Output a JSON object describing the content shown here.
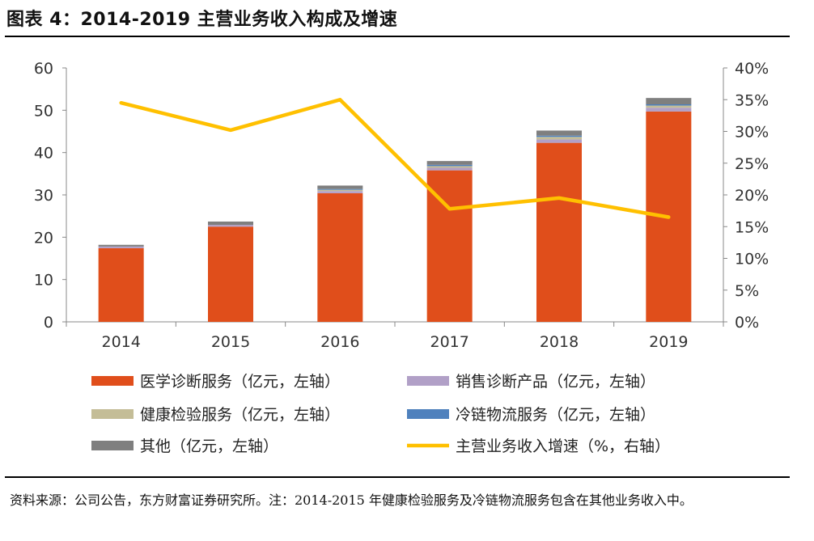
{
  "title": "图表 4：2014-2019 主营业务收入构成及增速",
  "source": "资料来源：公司公告，东方财富证券研究所。注：2014-2015 年健康检验服务及冷链物流服务包含在其他业务收入中。",
  "chart_data": {
    "type": "bar",
    "stacked": true,
    "categories": [
      "2014",
      "2015",
      "2016",
      "2017",
      "2018",
      "2019"
    ],
    "series": [
      {
        "name": "医学诊断服务（亿元，左轴）",
        "axis": "left",
        "color": "#e04e1b",
        "values": [
          17.4,
          22.5,
          30.4,
          35.8,
          42.3,
          49.7
        ]
      },
      {
        "name": "销售诊断产品（亿元，左轴）",
        "axis": "left",
        "color": "#b1a0c7",
        "values": [
          0.4,
          0.4,
          0.5,
          0.6,
          0.8,
          0.9
        ]
      },
      {
        "name": "健康检验服务（亿元，左轴）",
        "axis": "left",
        "color": "#c4bd97",
        "values": [
          0,
          0,
          0.3,
          0.4,
          0.6,
          0.5
        ]
      },
      {
        "name": "冷链物流服务（亿元，左轴）",
        "axis": "left",
        "color": "#4f81bd",
        "values": [
          0,
          0,
          0.2,
          0.3,
          0.3,
          0.3
        ]
      },
      {
        "name": "其他（亿元，左轴）",
        "axis": "left",
        "color": "#7f7f7f",
        "values": [
          0.4,
          0.8,
          0.8,
          0.9,
          1.2,
          1.5
        ]
      },
      {
        "name": "主营业务收入增速（%，右轴）",
        "axis": "right",
        "type": "line",
        "color": "#ffc000",
        "values": [
          34.5,
          30.2,
          35.0,
          17.8,
          19.5,
          16.5
        ]
      }
    ],
    "ylim": [
      0,
      60
    ],
    "yticks": [
      "0",
      "10",
      "20",
      "30",
      "40",
      "50",
      "60"
    ],
    "y2lim": [
      0,
      40
    ],
    "y2ticks": [
      "0%",
      "5%",
      "10%",
      "15%",
      "20%",
      "25%",
      "30%",
      "35%",
      "40%"
    ],
    "legend": "bottom",
    "grid": false
  }
}
